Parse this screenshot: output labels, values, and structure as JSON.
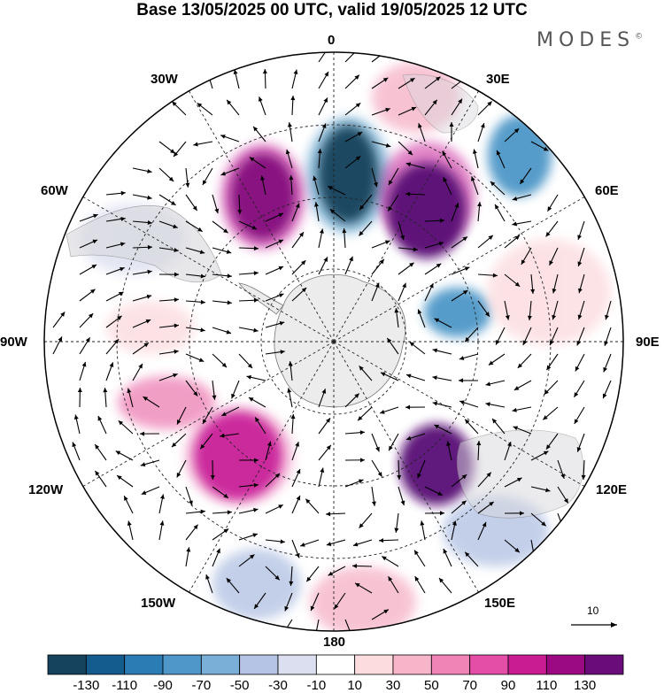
{
  "header": {
    "title": "Base 13/05/2025 00 UTC, valid 19/05/2025 12 UTC",
    "logo": "MODES",
    "logo_mark": "©"
  },
  "map": {
    "projection": "south-polar-stereographic",
    "longitude_labels": [
      "0",
      "30E",
      "60E",
      "90E",
      "120E",
      "150E",
      "180",
      "150W",
      "120W",
      "90W",
      "60W",
      "30W"
    ],
    "land_color": "#ececec",
    "field_anomalies": [
      {
        "sign": "negative",
        "level": -130,
        "color": "#15425c"
      },
      {
        "sign": "positive",
        "level": 110,
        "color": "#840a7e"
      },
      {
        "sign": "positive",
        "level": 130,
        "color": "#580a74"
      },
      {
        "sign": "negative",
        "level": -70,
        "color": "#4e97c8"
      },
      {
        "sign": "positive",
        "level": 90,
        "color": "#c9239a"
      },
      {
        "sign": "positive",
        "level": 50,
        "color": "#f199c2"
      },
      {
        "sign": "negative",
        "level": -50,
        "color": "#9aaed8"
      }
    ],
    "vector_reference": {
      "value": "10"
    }
  },
  "colorbar": {
    "colors": [
      "#15425c",
      "#155c8e",
      "#2b7bb5",
      "#4e97c8",
      "#7ab0d8",
      "#b5c4e4",
      "#dcdfef",
      "#ffffff",
      "#fcdcdf",
      "#f6b5c9",
      "#f084b6",
      "#e44ea6",
      "#c91c92",
      "#9c0a83",
      "#6a0c7a"
    ],
    "tick_labels": [
      "-130",
      "-110",
      "-90",
      "-70",
      "-50",
      "-30",
      "-10",
      "10",
      "30",
      "50",
      "70",
      "90",
      "110",
      "130"
    ]
  }
}
